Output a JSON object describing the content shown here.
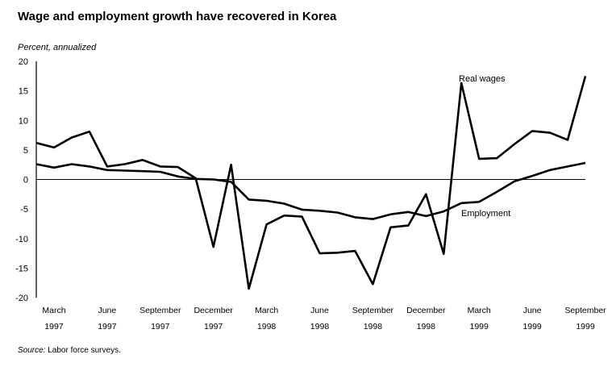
{
  "chart_data": {
    "type": "line",
    "title": "Wage and employment growth have recovered in Korea",
    "ylabel": "Percent, annualized",
    "xlabel": "",
    "ylim": [
      -20,
      20
    ],
    "yticks": [
      20,
      15,
      10,
      5,
      0,
      -5,
      -10,
      -15,
      -20
    ],
    "zero_line": true,
    "grid": false,
    "xtick_labels": [
      {
        "index": 1,
        "month": "March",
        "year": "1997"
      },
      {
        "index": 4,
        "month": "June",
        "year": "1997"
      },
      {
        "index": 7,
        "month": "September",
        "year": "1997"
      },
      {
        "index": 10,
        "month": "December",
        "year": "1997"
      },
      {
        "index": 13,
        "month": "March",
        "year": "1998"
      },
      {
        "index": 16,
        "month": "June",
        "year": "1998"
      },
      {
        "index": 19,
        "month": "September",
        "year": "1998"
      },
      {
        "index": 22,
        "month": "December",
        "year": "1998"
      },
      {
        "index": 25,
        "month": "March",
        "year": "1999"
      },
      {
        "index": 28,
        "month": "June",
        "year": "1999"
      },
      {
        "index": 31,
        "month": "September",
        "year": "1999"
      }
    ],
    "series": [
      {
        "name": "Real wages",
        "values": [
          6.2,
          5.4,
          7.1,
          8.1,
          2.2,
          2.6,
          3.3,
          2.2,
          2.1,
          0.2,
          -11.4,
          2.5,
          -18.5,
          -7.6,
          -6.1,
          -6.3,
          -12.5,
          -12.4,
          -12.1,
          -17.7,
          -8.1,
          -7.8,
          -2.5,
          -12.6,
          16.3,
          3.5,
          3.6,
          6.0,
          8.2,
          7.9,
          6.7,
          17.5
        ],
        "label_pos": "top-right"
      },
      {
        "name": "Employment",
        "values": [
          2.6,
          2.0,
          2.6,
          2.2,
          1.6,
          1.5,
          1.4,
          1.3,
          0.5,
          0.1,
          0.0,
          -0.4,
          -3.4,
          -3.6,
          -4.1,
          -5.1,
          -5.3,
          -5.6,
          -6.4,
          -6.7,
          -5.9,
          -5.5,
          -6.2,
          -5.4,
          -4.0,
          -3.8,
          -2.1,
          -0.3,
          0.6,
          1.6,
          2.2,
          2.8
        ],
        "label_pos": "right"
      }
    ]
  },
  "source_label": "Source:",
  "source_text": "Labor force surveys."
}
